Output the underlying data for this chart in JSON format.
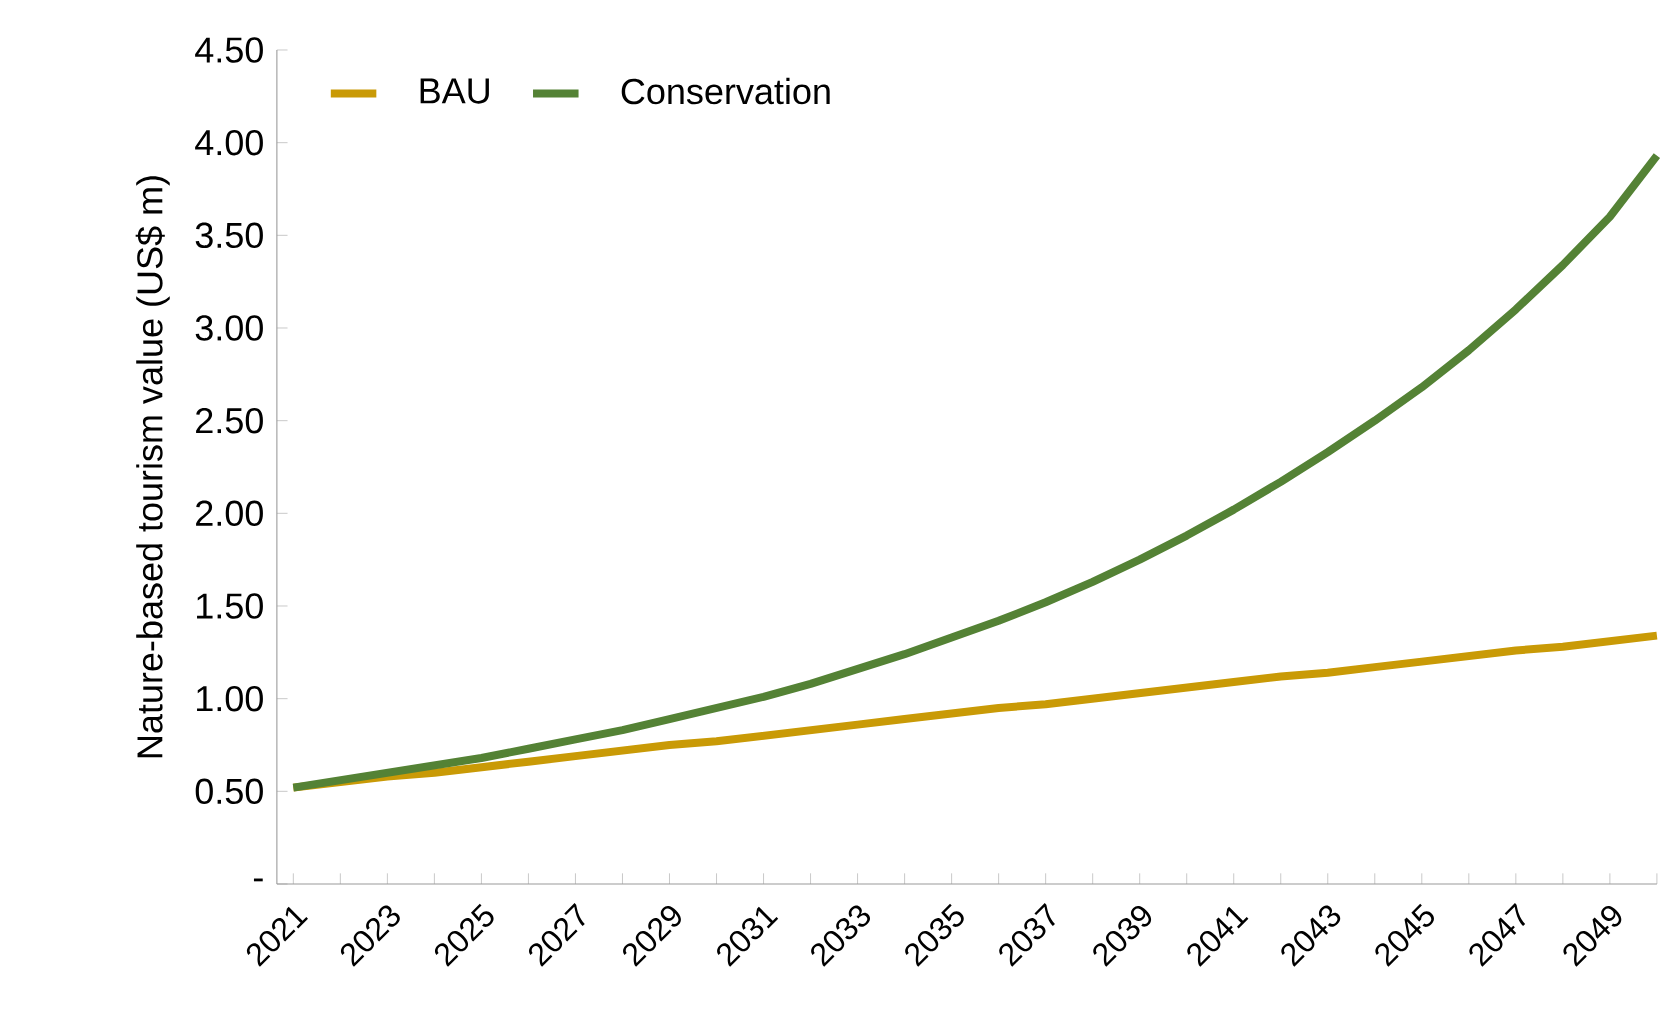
{
  "chart_data": {
    "type": "line",
    "ylabel": "Nature-based tourism value (US$ m)",
    "categories": [
      "2021",
      null,
      "2023",
      null,
      "2025",
      null,
      "2027",
      null,
      "2029",
      null,
      "2031",
      null,
      "2033",
      null,
      "2035",
      null,
      "2037",
      null,
      "2039",
      null,
      "2041",
      null,
      "2043",
      null,
      "2045",
      null,
      "2047",
      null,
      "2049",
      null
    ],
    "series": [
      {
        "name": "BAU",
        "color": "#c99a06",
        "values": [
          0.52,
          0.55,
          0.58,
          0.6,
          0.63,
          0.66,
          0.69,
          0.72,
          0.75,
          0.77,
          0.8,
          0.83,
          0.86,
          0.89,
          0.92,
          0.95,
          0.97,
          1.0,
          1.03,
          1.06,
          1.09,
          1.12,
          1.14,
          1.17,
          1.2,
          1.23,
          1.26,
          1.28,
          1.31,
          1.34
        ]
      },
      {
        "name": "Conservation",
        "color": "#548235",
        "values": [
          0.52,
          0.56,
          0.6,
          0.64,
          0.68,
          0.73,
          0.78,
          0.83,
          0.89,
          0.95,
          1.01,
          1.08,
          1.16,
          1.24,
          1.33,
          1.42,
          1.52,
          1.63,
          1.75,
          1.88,
          2.02,
          2.17,
          2.33,
          2.5,
          2.68,
          2.88,
          3.1,
          3.34,
          3.6,
          3.93
        ]
      }
    ],
    "ylim": [
      0,
      4.5
    ],
    "yticks": [
      {
        "value": 0,
        "label": "-"
      },
      {
        "value": 0.5,
        "label": "0.50"
      },
      {
        "value": 1,
        "label": "1.00"
      },
      {
        "value": 1.5,
        "label": "1.50"
      },
      {
        "value": 2,
        "label": "2.00"
      },
      {
        "value": 2.5,
        "label": "2.50"
      },
      {
        "value": 3,
        "label": "3.00"
      },
      {
        "value": 3.5,
        "label": "3.50"
      },
      {
        "value": 4,
        "label": "4.00"
      },
      {
        "value": 4.5,
        "label": "4.50"
      }
    ],
    "legend": "top left",
    "grid": false
  }
}
